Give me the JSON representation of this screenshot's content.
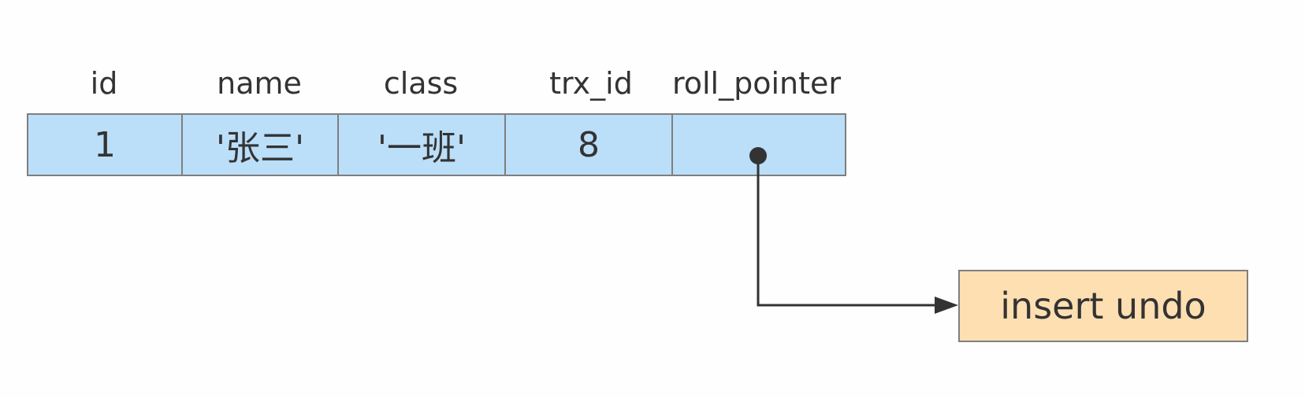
{
  "record": {
    "columns": [
      "id",
      "name",
      "class",
      "trx_id",
      "roll_pointer"
    ],
    "values": [
      "1",
      "'张三'",
      "'一班'",
      "8",
      ""
    ]
  },
  "undo_log": {
    "label": "insert undo"
  },
  "colors": {
    "record_fill": "#bbdef9",
    "undo_fill": "#fedfb1",
    "border": "#7f7f7f",
    "text": "#333333",
    "arrow": "#333333"
  }
}
